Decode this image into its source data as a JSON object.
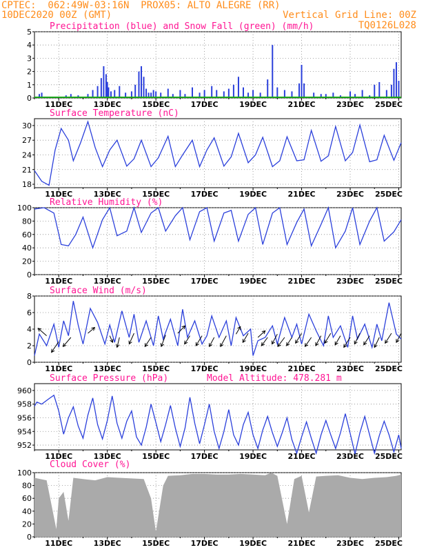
{
  "header": {
    "line1": "CPTEC:  062:49W-03:16N  PROX05: ALTO ALEGRE (RR)",
    "line2_left": "10DEC2020 00Z (GMT)",
    "line2_right": "Vertical Grid Line: 00Z",
    "line3_right": "TQ0126L028"
  },
  "colors": {
    "title": "#ff1493",
    "header": "#ff8c1a",
    "line": "#2a3fdb",
    "snow": "#1aa51a",
    "cloud": "#aaaaaa"
  },
  "x_labels": [
    "11DEC",
    "13DEC",
    "15DEC",
    "17DEC",
    "19DEC",
    "21DEC",
    "23DEC",
    "25DEC"
  ],
  "chart_data": [
    {
      "type": "bar",
      "title": "Precipitation (blue) and Snow Fall (green) (mm/h)",
      "xrange_days": [
        10,
        25.1
      ],
      "ylim": [
        0,
        5
      ],
      "yticks": [
        0,
        1,
        2,
        3,
        4,
        5
      ],
      "series": [
        {
          "name": "blue",
          "x": [
            10.2,
            10.3,
            11.0,
            11.3,
            11.5,
            11.8,
            12.2,
            12.4,
            12.6,
            12.75,
            12.85,
            12.95,
            13.0,
            13.05,
            13.15,
            13.3,
            13.5,
            13.75,
            14.0,
            14.15,
            14.3,
            14.4,
            14.5,
            14.6,
            14.7,
            14.8,
            14.9,
            15.0,
            15.2,
            15.5,
            15.7,
            16.0,
            16.2,
            16.5,
            16.8,
            17.0,
            17.3,
            17.5,
            17.8,
            18.0,
            18.2,
            18.4,
            18.6,
            18.8,
            19.0,
            19.3,
            19.6,
            19.8,
            20.0,
            20.3,
            20.6,
            20.9,
            21.0,
            21.1,
            21.5,
            21.8,
            22.0,
            22.3,
            22.6,
            23.0,
            23.2,
            23.5,
            23.8,
            24.0,
            24.2,
            24.5,
            24.7,
            24.8,
            24.9,
            25.0
          ],
          "y": [
            0.3,
            0.4,
            0.1,
            0.2,
            0.3,
            0.2,
            0.3,
            0.6,
            0.9,
            1.5,
            2.4,
            1.8,
            1.2,
            0.8,
            0.5,
            0.6,
            0.9,
            0.4,
            0.5,
            1.0,
            2.0,
            2.4,
            1.6,
            0.7,
            0.4,
            0.4,
            0.6,
            0.5,
            0.4,
            0.7,
            0.3,
            0.6,
            0.3,
            0.8,
            0.4,
            0.6,
            0.9,
            0.6,
            0.5,
            0.7,
            1.0,
            1.6,
            0.8,
            0.4,
            0.6,
            0.4,
            1.4,
            4.0,
            0.8,
            0.6,
            0.5,
            1.1,
            2.5,
            1.1,
            0.4,
            0.3,
            0.3,
            0.4,
            0.2,
            0.5,
            0.3,
            0.6,
            0.2,
            1.0,
            1.2,
            0.6,
            1.0,
            2.2,
            2.7,
            1.3
          ]
        },
        {
          "name": "green",
          "x": [
            10.0,
            25.1
          ],
          "y": [
            0.05,
            0.05
          ]
        }
      ]
    },
    {
      "type": "line",
      "title": "Surface Temperature (nC)",
      "ylim": [
        17.3,
        31.4
      ],
      "yticks": [
        18,
        21,
        24,
        27,
        30
      ],
      "x": [
        10.0,
        10.3,
        10.6,
        10.85,
        11.1,
        11.4,
        11.6,
        11.9,
        12.2,
        12.5,
        12.8,
        13.1,
        13.4,
        13.8,
        14.1,
        14.4,
        14.8,
        15.1,
        15.5,
        15.8,
        16.1,
        16.5,
        16.8,
        17.1,
        17.4,
        17.8,
        18.1,
        18.4,
        18.8,
        19.1,
        19.4,
        19.8,
        20.1,
        20.4,
        20.8,
        21.1,
        21.4,
        21.8,
        22.1,
        22.4,
        22.8,
        23.1,
        23.4,
        23.8,
        24.1,
        24.4,
        24.8,
        25.1
      ],
      "y": [
        20.8,
        18.6,
        17.8,
        25.0,
        29.4,
        27.0,
        22.8,
        26.5,
        30.8,
        25.5,
        21.6,
        25.0,
        27.0,
        21.7,
        23.2,
        27.0,
        21.6,
        23.4,
        27.8,
        21.6,
        24.0,
        27.0,
        21.6,
        25.0,
        27.5,
        21.7,
        23.6,
        28.4,
        22.4,
        24.0,
        27.6,
        21.6,
        22.8,
        27.7,
        22.8,
        23.0,
        29.0,
        22.7,
        23.8,
        29.8,
        22.8,
        24.5,
        30.1,
        22.6,
        23.0,
        28.0,
        22.9,
        26.5
      ]
    },
    {
      "type": "line",
      "title": "Relative Humidity (%)",
      "ylim": [
        0,
        100
      ],
      "yticks": [
        0,
        20,
        40,
        60,
        80,
        100
      ],
      "x": [
        10.0,
        10.4,
        10.8,
        11.1,
        11.4,
        11.7,
        12.0,
        12.4,
        12.8,
        13.1,
        13.4,
        13.8,
        14.1,
        14.4,
        14.8,
        15.1,
        15.4,
        15.8,
        16.1,
        16.4,
        16.8,
        17.1,
        17.4,
        17.8,
        18.1,
        18.4,
        18.8,
        19.1,
        19.4,
        19.8,
        20.1,
        20.4,
        20.8,
        21.1,
        21.4,
        21.8,
        22.1,
        22.4,
        22.8,
        23.1,
        23.4,
        23.8,
        24.1,
        24.4,
        24.8,
        25.1
      ],
      "y": [
        98,
        100,
        92,
        45,
        43,
        60,
        86,
        40,
        82,
        100,
        58,
        65,
        100,
        63,
        92,
        100,
        65,
        88,
        100,
        52,
        94,
        100,
        50,
        92,
        96,
        50,
        90,
        100,
        45,
        92,
        100,
        45,
        78,
        98,
        43,
        75,
        100,
        40,
        65,
        100,
        45,
        80,
        100,
        50,
        64,
        82
      ]
    },
    {
      "type": "line",
      "title": "Surface Wind (m/s)",
      "ylim": [
        0,
        8
      ],
      "yticks": [
        0,
        2,
        4,
        6,
        8
      ],
      "x": [
        10.0,
        10.2,
        10.5,
        10.8,
        11.0,
        11.2,
        11.4,
        11.6,
        11.8,
        12.0,
        12.3,
        12.6,
        12.9,
        13.1,
        13.3,
        13.6,
        13.9,
        14.1,
        14.3,
        14.6,
        14.9,
        15.1,
        15.3,
        15.6,
        15.9,
        16.1,
        16.3,
        16.6,
        16.9,
        17.1,
        17.3,
        17.6,
        17.9,
        18.1,
        18.3,
        18.6,
        18.9,
        19.0,
        19.2,
        19.5,
        19.8,
        20.0,
        20.3,
        20.6,
        20.8,
        21.0,
        21.3,
        21.6,
        21.9,
        22.1,
        22.3,
        22.6,
        22.9,
        23.1,
        23.3,
        23.6,
        23.9,
        24.1,
        24.3,
        24.6,
        24.9,
        25.1
      ],
      "y": [
        0.8,
        3.4,
        2.0,
        4.6,
        1.8,
        5.0,
        3.2,
        7.4,
        4.5,
        2.2,
        6.5,
        4.8,
        2.2,
        4.5,
        2.4,
        6.2,
        3.0,
        5.8,
        2.4,
        5.0,
        2.0,
        5.6,
        2.8,
        5.2,
        2.0,
        6.4,
        3.0,
        5.0,
        2.2,
        3.2,
        5.6,
        3.0,
        5.0,
        2.0,
        5.4,
        3.2,
        4.0,
        0.8,
        2.6,
        3.0,
        4.4,
        2.2,
        5.4,
        3.0,
        4.6,
        2.2,
        5.8,
        3.8,
        2.0,
        5.6,
        3.0,
        4.4,
        1.8,
        5.6,
        2.8,
        4.6,
        1.8,
        4.6,
        2.6,
        7.2,
        3.4,
        2.8
      ],
      "arrows": {
        "x": [
          10.5,
          11.0,
          11.5,
          12.2,
          13.1,
          13.5,
          14.1,
          14.8,
          15.4,
          15.9,
          16.4,
          16.9,
          17.4,
          17.9,
          18.3,
          18.8,
          19.2,
          19.6,
          20.0,
          20.3,
          20.6,
          21.0,
          21.4,
          21.8,
          22.2,
          22.6,
          23.0,
          23.4,
          23.8,
          24.2,
          24.7,
          25.1
        ],
        "y": [
          3.2,
          2.5,
          3.0,
          3.5,
          3.2,
          3.0,
          3.5,
          3.0,
          3.3,
          3.5,
          3.2,
          3.2,
          3.0,
          3.2,
          3.4,
          3.5,
          3.0,
          3.0,
          3.4,
          3.0,
          3.0,
          3.5,
          3.0,
          3.2,
          3.5,
          3.2,
          3.0,
          3.5,
          3.2,
          3.0,
          3.5,
          3.5
        ],
        "dx": [
          -0.35,
          -0.3,
          -0.32,
          0.28,
          0.12,
          -0.1,
          -0.2,
          -0.25,
          -0.18,
          0.3,
          -0.22,
          -0.25,
          -0.2,
          -0.24,
          0.18,
          -0.22,
          0.3,
          -0.25,
          -0.22,
          -0.28,
          -0.22,
          -0.25,
          -0.26,
          -0.22,
          -0.25,
          -0.22,
          -0.26,
          -0.22,
          -0.24,
          -0.2,
          -0.26,
          -0.2
        ],
        "dy": [
          0.9,
          -1.3,
          -1.1,
          0.7,
          -0.8,
          -1.2,
          -1.3,
          -1.1,
          -1.4,
          0.9,
          -1.0,
          -1.2,
          -1.1,
          -1.3,
          0.9,
          -1.1,
          0.8,
          -1.0,
          -1.2,
          -1.1,
          -1.0,
          -1.2,
          -1.1,
          -1.2,
          -1.2,
          -1.1,
          -1.2,
          -1.3,
          -1.1,
          -1.2,
          -1.2,
          -1.1
        ]
      }
    },
    {
      "type": "line",
      "title": "Surface Pressure (hPa)",
      "annotation": "Model Altitude: 478.281  m",
      "ylim": [
        951.3,
        961.0
      ],
      "yticks": [
        952,
        954,
        956,
        958,
        960
      ],
      "x": [
        10.0,
        10.1,
        10.3,
        10.6,
        10.8,
        11.0,
        11.2,
        11.4,
        11.6,
        11.8,
        12.0,
        12.2,
        12.4,
        12.6,
        12.8,
        13.0,
        13.2,
        13.4,
        13.6,
        13.8,
        14.0,
        14.2,
        14.4,
        14.6,
        14.8,
        15.0,
        15.2,
        15.4,
        15.6,
        15.8,
        16.0,
        16.2,
        16.4,
        16.6,
        16.8,
        17.0,
        17.2,
        17.4,
        17.6,
        17.8,
        18.0,
        18.2,
        18.4,
        18.6,
        18.8,
        19.0,
        19.2,
        19.4,
        19.6,
        19.8,
        20.0,
        20.2,
        20.4,
        20.6,
        20.8,
        21.0,
        21.2,
        21.4,
        21.6,
        21.8,
        22.0,
        22.2,
        22.4,
        22.6,
        22.8,
        23.0,
        23.2,
        23.4,
        23.6,
        23.8,
        24.0,
        24.2,
        24.4,
        24.6,
        24.8,
        25.0,
        25.1
      ],
      "y": [
        957.7,
        958.3,
        958.0,
        958.8,
        959.3,
        957.0,
        953.6,
        956.0,
        957.6,
        954.8,
        953.0,
        956.4,
        958.9,
        955.0,
        952.9,
        955.6,
        959.2,
        955.2,
        953.0,
        955.5,
        957.0,
        953.2,
        952.0,
        954.6,
        958.0,
        955.3,
        952.5,
        955.0,
        957.8,
        954.5,
        951.8,
        954.5,
        959.0,
        955.2,
        952.2,
        955.0,
        958.0,
        954.0,
        951.5,
        954.0,
        957.2,
        953.5,
        952.0,
        955.0,
        956.8,
        953.5,
        951.5,
        954.2,
        956.2,
        953.8,
        951.8,
        953.8,
        956.0,
        952.8,
        950.8,
        953.2,
        955.4,
        953.0,
        950.8,
        953.5,
        955.6,
        953.5,
        951.5,
        953.8,
        956.6,
        953.7,
        950.7,
        953.8,
        956.2,
        953.5,
        950.8,
        953.4,
        955.5,
        953.5,
        951.0,
        953.5,
        951.5
      ]
    },
    {
      "type": "bar",
      "title": "Cloud Cover (%)",
      "ylim": [
        0,
        100
      ],
      "yticks": [
        0,
        20,
        40,
        60,
        80,
        100
      ],
      "x": [
        10.0,
        10.5,
        10.9,
        11.0,
        11.2,
        11.4,
        11.6,
        12.0,
        12.5,
        13.0,
        13.5,
        14.0,
        14.5,
        14.8,
        15.0,
        15.3,
        15.5,
        16.0,
        16.5,
        17.0,
        17.5,
        18.0,
        18.5,
        19.0,
        19.5,
        19.75,
        20.0,
        20.4,
        20.7,
        21.0,
        21.3,
        21.6,
        22.0,
        22.5,
        23.0,
        23.5,
        24.0,
        24.5,
        24.9,
        25.1
      ],
      "y": [
        92,
        88,
        12,
        60,
        70,
        25,
        92,
        90,
        88,
        93,
        92,
        91,
        90,
        60,
        8,
        80,
        95,
        96,
        98,
        98,
        97,
        97,
        98,
        97,
        96,
        100,
        95,
        20,
        90,
        95,
        38,
        94,
        95,
        96,
        92,
        90,
        92,
        93,
        95,
        97
      ]
    }
  ]
}
